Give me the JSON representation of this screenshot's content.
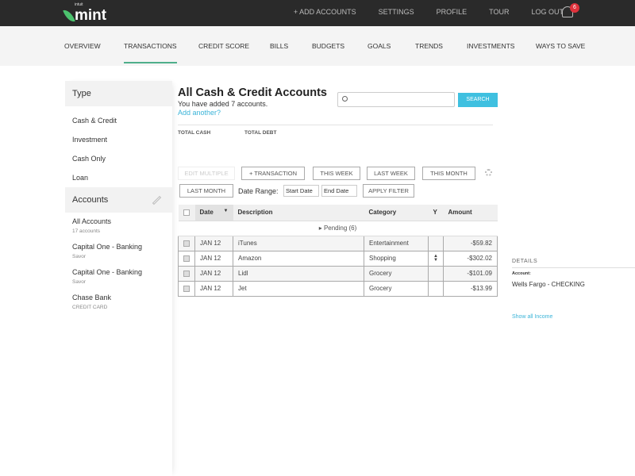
{
  "topbar": {
    "logo": "mint",
    "logo_sub": "intuit",
    "links": [
      "+ ADD ACCOUNTS",
      "SETTINGS",
      "PROFILE",
      "TOUR",
      "LOG OUT"
    ],
    "notifications": "6"
  },
  "nav": {
    "items": [
      "OVERVIEW",
      "TRANSACTIONS",
      "CREDIT SCORE",
      "BILLS",
      "BUDGETS",
      "GOALS",
      "TRENDS",
      "INVESTMENTS",
      "WAYS TO SAVE"
    ],
    "active": "TRANSACTIONS"
  },
  "sidebar": {
    "type_title": "Type",
    "types": [
      "Cash & Credit",
      "Investment",
      "Cash Only",
      "Loan"
    ],
    "accounts_title": "Accounts",
    "accounts": [
      {
        "name": "All Accounts",
        "sub": "17 accounts"
      },
      {
        "name": "Capital One - Banking",
        "sub": "Savor"
      },
      {
        "name": "Capital One - Banking",
        "sub": "Savor"
      },
      {
        "name": "Chase Bank",
        "sub": "CREDIT CARD"
      }
    ]
  },
  "main": {
    "title": "All Cash & Credit Accounts",
    "subtitle": "You have added 7 accounts.",
    "add_link": "Add another?",
    "search_placeholder": "",
    "search_button": "SEARCH",
    "total_cash": "TOTAL CASH",
    "total_debt": "TOTAL DEBT",
    "buttons": {
      "edit_multiple": "EDIT MULTIPLE",
      "add_transaction": "+ TRANSACTION",
      "this_week": "THIS WEEK",
      "last_week": "LAST WEEK",
      "this_month": "THIS MONTH",
      "last_month": "LAST MONTH",
      "apply_filter": "APPLY FILTER"
    },
    "date_range_label": "Date Range:",
    "start_date": "Start Date",
    "end_date": "End Date",
    "columns": [
      "Date",
      "Description",
      "Category",
      "Amount"
    ],
    "pending": "Pending (6)",
    "rows": [
      {
        "date": "JAN 12",
        "desc": "iTunes",
        "cat": "Entertainment",
        "amt": "-$59.82"
      },
      {
        "date": "JAN 12",
        "desc": "Amazon",
        "cat": "Shopping",
        "amt": "-$302.02"
      },
      {
        "date": "JAN 12",
        "desc": "Lidl",
        "cat": "Grocery",
        "amt": "-$101.09"
      },
      {
        "date": "JAN 12",
        "desc": "Jet",
        "cat": "Grocery",
        "amt": "-$13.99"
      }
    ]
  },
  "details": {
    "title": "DETAILS",
    "account_label": "Account:",
    "account_value": "Wells Fargo - CHECKING",
    "show_income": "Show all Income"
  },
  "colors": {
    "accent": "#3fc0e0",
    "topbar": "#2a2a2a",
    "badge": "#e0323c",
    "active_underline": "#4fae8b"
  }
}
